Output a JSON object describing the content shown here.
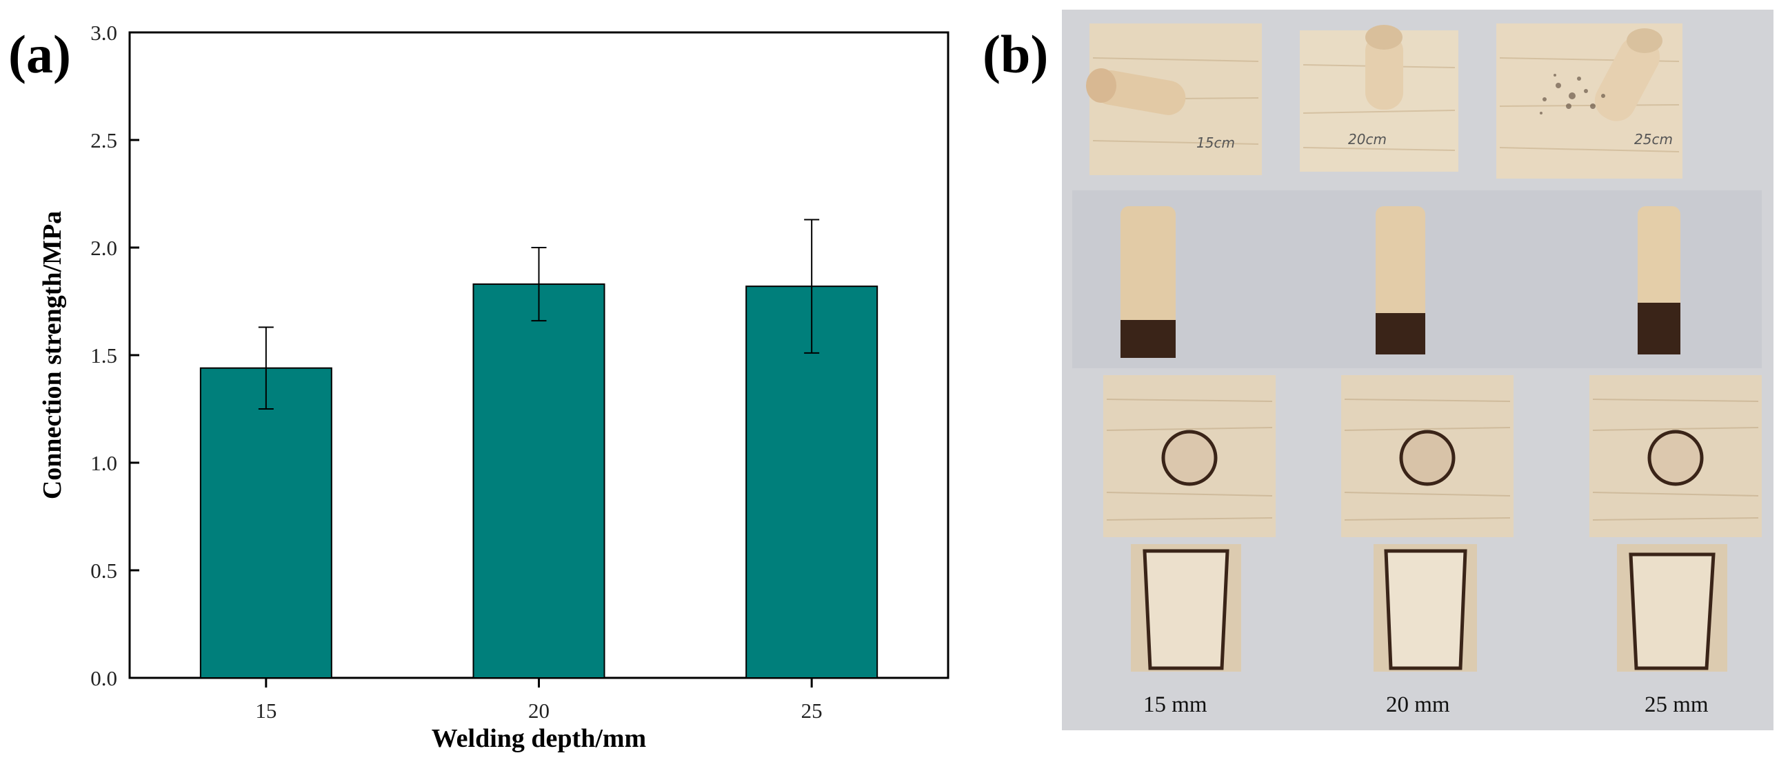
{
  "panels": {
    "a_label": "(a)",
    "b_label": "(b)"
  },
  "chart_data": {
    "type": "bar",
    "categories": [
      "15",
      "20",
      "25"
    ],
    "values": [
      1.44,
      1.83,
      1.82
    ],
    "errors": [
      0.19,
      0.17,
      0.31
    ],
    "title": "",
    "xlabel": "Welding depth/mm",
    "ylabel": "Connection strength/MPa",
    "ylim": [
      0,
      3.0
    ],
    "yticks": [
      "0.0",
      "0.5",
      "1.0",
      "1.5",
      "2.0",
      "2.5",
      "3.0"
    ],
    "ytick_values": [
      0,
      0.5,
      1.0,
      1.5,
      2.0,
      2.5,
      3.0
    ],
    "bar_color": "#007f7b",
    "grid": false,
    "legend": "none"
  },
  "photo_panel": {
    "captions": [
      "15 mm",
      "20 mm",
      "25 mm"
    ],
    "board_labels": [
      "15cm",
      "20cm",
      "25cm"
    ],
    "wood_color": "#e4d4b8",
    "char_color": "#3a2418"
  }
}
